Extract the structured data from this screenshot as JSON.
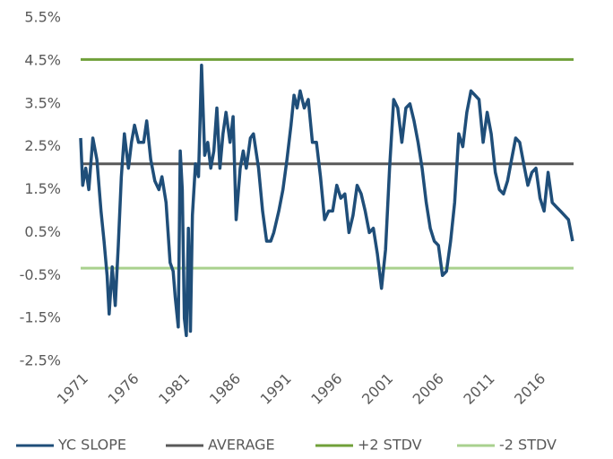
{
  "chart_data": {
    "type": "line",
    "xlim": [
      1971,
      2019.5
    ],
    "xticks": [
      1971,
      1976,
      1981,
      1986,
      1991,
      1996,
      2001,
      2006,
      2011,
      2016
    ],
    "ylim": [
      -2.5,
      5.5
    ],
    "yticks": [
      {
        "value": 5.5,
        "label": "5.5%"
      },
      {
        "value": 4.5,
        "label": "4.5%"
      },
      {
        "value": 3.5,
        "label": "3.5%"
      },
      {
        "value": 2.5,
        "label": "2.5%"
      },
      {
        "value": 1.5,
        "label": "1.5%"
      },
      {
        "value": 0.5,
        "label": "0.5%"
      },
      {
        "value": -0.5,
        "label": "-0.5%"
      },
      {
        "value": -1.5,
        "label": "-1.5%"
      },
      {
        "value": -2.5,
        "label": "-2.5%"
      }
    ],
    "legend": "bottom",
    "series": [
      {
        "name": "YC SLOPE",
        "color": "#1f4e79",
        "x": [
          1971.0,
          1971.2,
          1971.5,
          1971.8,
          1972.2,
          1972.6,
          1973.0,
          1973.3,
          1973.6,
          1973.8,
          1974.1,
          1974.4,
          1974.7,
          1975.0,
          1975.3,
          1975.7,
          1976.0,
          1976.3,
          1976.7,
          1977.2,
          1977.5,
          1977.9,
          1978.3,
          1978.7,
          1979.0,
          1979.4,
          1979.8,
          1980.1,
          1980.3,
          1980.6,
          1980.8,
          1981.0,
          1981.2,
          1981.4,
          1981.6,
          1981.8,
          1982.0,
          1982.3,
          1982.6,
          1982.9,
          1983.2,
          1983.5,
          1983.8,
          1984.1,
          1984.4,
          1984.7,
          1985.0,
          1985.3,
          1985.7,
          1986.0,
          1986.3,
          1986.7,
          1987.0,
          1987.3,
          1987.7,
          1988.0,
          1988.5,
          1988.9,
          1989.3,
          1989.7,
          1990.0,
          1990.5,
          1990.9,
          1991.3,
          1991.7,
          1992.0,
          1992.3,
          1992.6,
          1993.0,
          1993.4,
          1993.8,
          1994.2,
          1994.6,
          1995.0,
          1995.4,
          1995.8,
          1996.2,
          1996.6,
          1997.0,
          1997.4,
          1997.8,
          1998.2,
          1998.6,
          1999.0,
          1999.4,
          1999.8,
          2000.2,
          2000.6,
          2001.0,
          2001.4,
          2001.8,
          2002.2,
          2002.6,
          2003.0,
          2003.4,
          2003.8,
          2004.2,
          2004.6,
          2005.0,
          2005.4,
          2005.8,
          2006.2,
          2006.6,
          2007.0,
          2007.4,
          2007.8,
          2008.2,
          2008.6,
          2009.0,
          2009.4,
          2009.8,
          2010.2,
          2010.6,
          2011.0,
          2011.4,
          2011.8,
          2012.2,
          2012.6,
          2013.0,
          2013.4,
          2013.8,
          2014.2,
          2014.6,
          2015.0,
          2015.4,
          2015.8,
          2016.2,
          2016.6,
          2017.0,
          2017.4,
          2017.8,
          2018.2,
          2018.6,
          2019.0,
          2019.4
        ],
        "values": [
          2.7,
          1.6,
          2.0,
          1.5,
          2.7,
          2.2,
          1.0,
          0.3,
          -0.5,
          -1.4,
          -0.3,
          -1.2,
          0.2,
          1.8,
          2.8,
          2.0,
          2.6,
          3.0,
          2.6,
          2.6,
          3.1,
          2.2,
          1.7,
          1.5,
          1.8,
          1.2,
          -0.2,
          -0.4,
          -1.0,
          -1.7,
          2.4,
          1.5,
          -1.5,
          -1.9,
          0.6,
          -1.8,
          0.9,
          2.1,
          1.8,
          4.4,
          2.3,
          2.6,
          2.0,
          2.4,
          3.4,
          2.0,
          2.8,
          3.3,
          2.6,
          3.2,
          0.8,
          2.0,
          2.4,
          2.0,
          2.7,
          2.8,
          2.0,
          1.0,
          0.3,
          0.3,
          0.5,
          1.0,
          1.5,
          2.2,
          3.0,
          3.7,
          3.4,
          3.8,
          3.4,
          3.6,
          2.6,
          2.6,
          1.8,
          0.8,
          1.0,
          1.0,
          1.6,
          1.3,
          1.4,
          0.5,
          0.9,
          1.6,
          1.4,
          1.0,
          0.5,
          0.6,
          0.0,
          -0.8,
          0.1,
          2.0,
          3.6,
          3.4,
          2.6,
          3.4,
          3.5,
          3.1,
          2.6,
          2.0,
          1.2,
          0.6,
          0.3,
          0.2,
          -0.5,
          -0.4,
          0.3,
          1.2,
          2.8,
          2.5,
          3.3,
          3.8,
          3.7,
          3.6,
          2.6,
          3.3,
          2.8,
          1.9,
          1.5,
          1.4,
          1.7,
          2.2,
          2.7,
          2.6,
          2.1,
          1.6,
          1.9,
          2.0,
          1.3,
          1.0,
          1.9,
          1.2,
          1.1,
          1.0,
          0.9,
          0.8,
          0.3
        ]
      },
      {
        "name": "AVERAGE",
        "color": "#595959",
        "x": [
          1971,
          2019.5
        ],
        "values": [
          2.1,
          2.1
        ]
      },
      {
        "name": "+2 STDV",
        "color": "#70a03a",
        "x": [
          1971,
          2019.5
        ],
        "values": [
          4.53,
          4.53
        ]
      },
      {
        "name": "-2 STDV",
        "color": "#a9d18e",
        "x": [
          1971,
          2019.5
        ],
        "values": [
          -0.33,
          -0.33
        ]
      }
    ]
  }
}
